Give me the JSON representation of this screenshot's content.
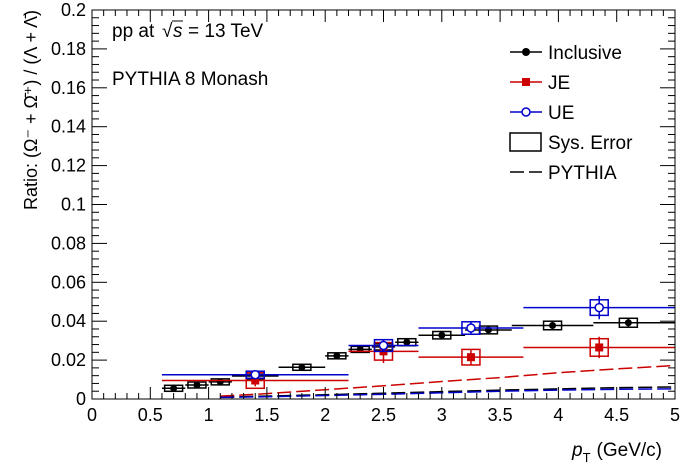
{
  "chart_data": {
    "type": "scatter",
    "annotations": [
      "pp at",
      "√",
      "s",
      "= 13 TeV",
      "PYTHIA 8 Monash"
    ],
    "xlabel": {
      "main": "p",
      "sub": "T",
      "unit": "(GeV/c)"
    },
    "ylabel": "Ratio: (Ω⁻ + Ω̄⁺) / (Λ + Λ̄)",
    "xlim": [
      0,
      5
    ],
    "ylim": [
      0,
      0.2
    ],
    "xticks": [
      0,
      0.5,
      1,
      1.5,
      2,
      2.5,
      3,
      3.5,
      4,
      4.5,
      5
    ],
    "yticks": [
      0,
      0.02,
      0.04,
      0.06,
      0.08,
      0.1,
      0.12,
      0.14,
      0.16,
      0.18,
      0.2
    ],
    "legend_position": "top-right",
    "legend": [
      "Inclusive",
      "JE",
      "UE",
      "Sys. Error",
      "PYTHIA"
    ],
    "series": [
      {
        "name": "Inclusive",
        "color": "#000000",
        "marker": "circle-filled",
        "points": [
          {
            "x": 0.7,
            "xlo": 0.6,
            "xhi": 0.8,
            "y": 0.0055,
            "err": 0.0008,
            "sys": 0.0006
          },
          {
            "x": 0.9,
            "xlo": 0.8,
            "xhi": 1.0,
            "y": 0.0072,
            "err": 0.0006,
            "sys": 0.0006
          },
          {
            "x": 1.1,
            "xlo": 1.0,
            "xhi": 1.2,
            "y": 0.0088,
            "err": 0.0005,
            "sys": 0.0007
          },
          {
            "x": 1.4,
            "xlo": 1.2,
            "xhi": 1.6,
            "y": 0.0118,
            "err": 0.0006,
            "sys": 0.0009
          },
          {
            "x": 1.8,
            "xlo": 1.6,
            "xhi": 2.0,
            "y": 0.0163,
            "err": 0.0007,
            "sys": 0.0011
          },
          {
            "x": 2.1,
            "xlo": 2.0,
            "xhi": 2.2,
            "y": 0.0222,
            "err": 0.0008,
            "sys": 0.0013
          },
          {
            "x": 2.3,
            "xlo": 2.2,
            "xhi": 2.4,
            "y": 0.0255,
            "err": 0.0009,
            "sys": 0.0015
          },
          {
            "x": 2.5,
            "xlo": 2.4,
            "xhi": 2.6,
            "y": 0.0268,
            "err": 0.001,
            "sys": 0.0016
          },
          {
            "x": 2.7,
            "xlo": 2.6,
            "xhi": 2.8,
            "y": 0.0292,
            "err": 0.0011,
            "sys": 0.0018
          },
          {
            "x": 3.0,
            "xlo": 2.8,
            "xhi": 3.2,
            "y": 0.0328,
            "err": 0.0012,
            "sys": 0.0019
          },
          {
            "x": 3.4,
            "xlo": 3.2,
            "xhi": 3.6,
            "y": 0.0355,
            "err": 0.0013,
            "sys": 0.002
          },
          {
            "x": 3.95,
            "xlo": 3.6,
            "xhi": 4.3,
            "y": 0.0378,
            "err": 0.0016,
            "sys": 0.0022
          },
          {
            "x": 4.6,
            "xlo": 4.3,
            "xhi": 5.0,
            "y": 0.0392,
            "err": 0.002,
            "sys": 0.0023
          }
        ]
      },
      {
        "name": "JE",
        "color": "#cc0000",
        "marker": "square-filled",
        "points": [
          {
            "x": 1.4,
            "xlo": 0.6,
            "xhi": 2.2,
            "y": 0.0095,
            "err": 0.003,
            "sys": 0.004
          },
          {
            "x": 2.5,
            "xlo": 2.2,
            "xhi": 2.8,
            "y": 0.0245,
            "err": 0.006,
            "sys": 0.0045
          },
          {
            "x": 3.25,
            "xlo": 2.8,
            "xhi": 3.7,
            "y": 0.0215,
            "err": 0.0038,
            "sys": 0.004
          },
          {
            "x": 4.35,
            "xlo": 3.7,
            "xhi": 5.0,
            "y": 0.0265,
            "err": 0.0055,
            "sys": 0.0045
          }
        ]
      },
      {
        "name": "UE",
        "color": "#0000cc",
        "marker": "circle-open",
        "points": [
          {
            "x": 1.4,
            "xlo": 0.6,
            "xhi": 2.2,
            "y": 0.0125,
            "err": 0.0015,
            "sys": 0.0018
          },
          {
            "x": 2.5,
            "xlo": 2.2,
            "xhi": 2.8,
            "y": 0.0275,
            "err": 0.003,
            "sys": 0.003
          },
          {
            "x": 3.25,
            "xlo": 2.8,
            "xhi": 3.7,
            "y": 0.0365,
            "err": 0.0035,
            "sys": 0.0032
          },
          {
            "x": 4.35,
            "xlo": 3.7,
            "xhi": 5.0,
            "y": 0.047,
            "err": 0.006,
            "sys": 0.004
          }
        ]
      }
    ],
    "pythia_curves": [
      {
        "name": "PYTHIA",
        "color": "#000000",
        "x": [
          1.1,
          1.5,
          2.0,
          2.5,
          3.0,
          3.5,
          4.0,
          4.5,
          5.0
        ],
        "y": [
          0.001,
          0.0015,
          0.0022,
          0.003,
          0.0038,
          0.0046,
          0.0052,
          0.0058,
          0.0062
        ]
      },
      {
        "name": "PYTHIA",
        "color": "#cc0000",
        "x": [
          1.1,
          1.5,
          2.0,
          2.5,
          3.0,
          3.5,
          4.0,
          4.5,
          5.0
        ],
        "y": [
          0.0015,
          0.0028,
          0.0048,
          0.0068,
          0.009,
          0.011,
          0.0135,
          0.0155,
          0.0172
        ]
      },
      {
        "name": "PYTHIA",
        "color": "#0000cc",
        "x": [
          1.1,
          1.5,
          2.0,
          2.5,
          3.0,
          3.5,
          4.0,
          4.5,
          5.0
        ],
        "y": [
          0.0008,
          0.0012,
          0.0018,
          0.0024,
          0.0032,
          0.004,
          0.0046,
          0.005,
          0.0052
        ]
      }
    ]
  }
}
